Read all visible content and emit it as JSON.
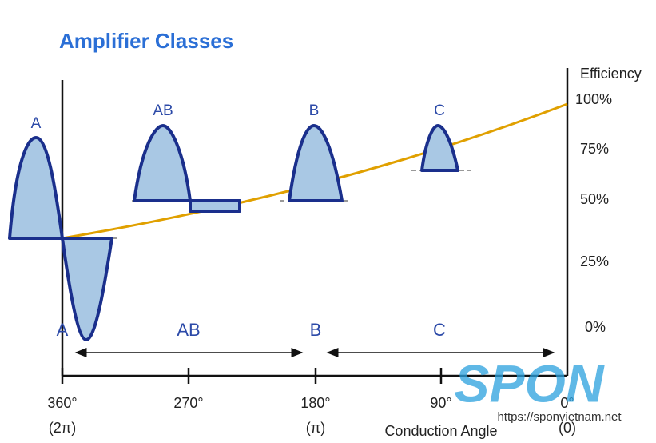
{
  "header": {
    "title": "Amplifier Classes"
  },
  "axes": {
    "efficiency_label": "Efficiency",
    "efficiency_ticks": [
      "100%",
      "75%",
      "50%",
      "25%",
      "0%"
    ],
    "angle_ticks": [
      "360°",
      "270°",
      "180°",
      "90°",
      "0°"
    ],
    "angle_sub": [
      "(2π)",
      "(π)",
      "(0)"
    ],
    "angle_label": "Conduction Angle"
  },
  "waveforms": [
    "A",
    "AB",
    "B",
    "C"
  ],
  "regions": [
    "A",
    "AB",
    "B",
    "C"
  ],
  "watermark": {
    "brand": "SPON",
    "url": "https://sponvietnam.net"
  }
}
